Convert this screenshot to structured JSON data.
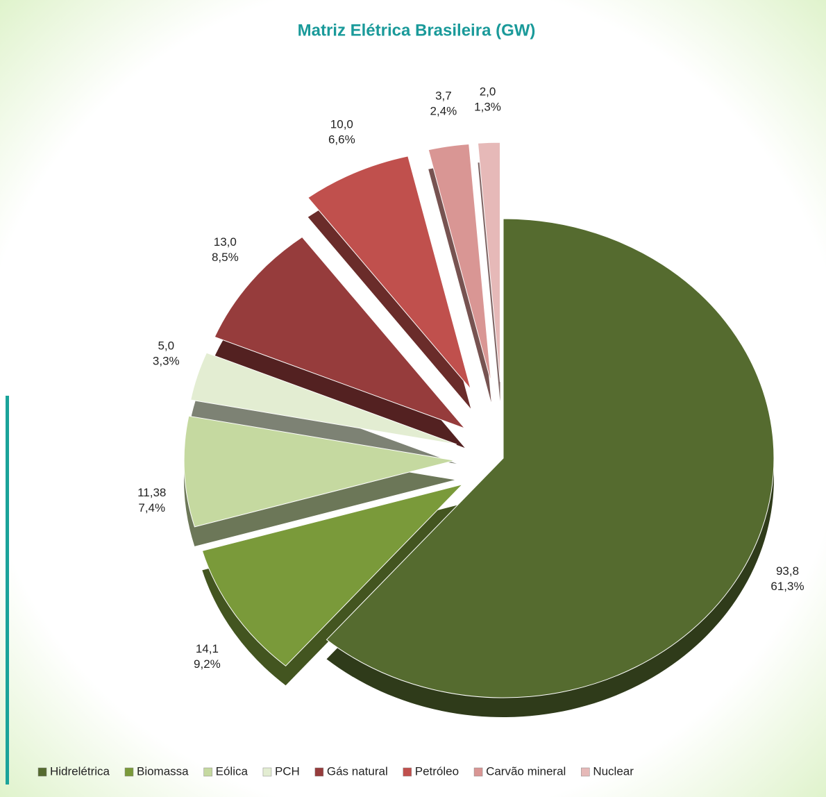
{
  "chart_data": {
    "type": "pie",
    "title": "Matriz Elétrica Brasileira (GW)",
    "categories": [
      "Hidrelétrica",
      "Biomassa",
      "Eólica",
      "PCH",
      "Gás natural",
      "Petróleo",
      "Carvão mineral",
      "Nuclear"
    ],
    "values": [
      93.8,
      14.1,
      11.38,
      5.0,
      13.0,
      10.0,
      3.7,
      2.0
    ],
    "value_labels": [
      "93,8",
      "14,1",
      "11,38",
      "5,0",
      "13,0",
      "10,0",
      "3,7",
      "2,0"
    ],
    "percents": [
      61.3,
      9.2,
      7.4,
      3.3,
      8.5,
      6.6,
      2.4,
      1.3
    ],
    "percent_labels": [
      "61,3%",
      "9,2%",
      "7,4%",
      "3,3%",
      "8,5%",
      "6,6%",
      "2,4%",
      "1,3%"
    ],
    "colors": [
      "#556b2f",
      "#7a9a3a",
      "#c5d9a0",
      "#e3edd2",
      "#963c3c",
      "#c0504d",
      "#d99694",
      "#e6b9b8"
    ],
    "legend": "bottom"
  }
}
